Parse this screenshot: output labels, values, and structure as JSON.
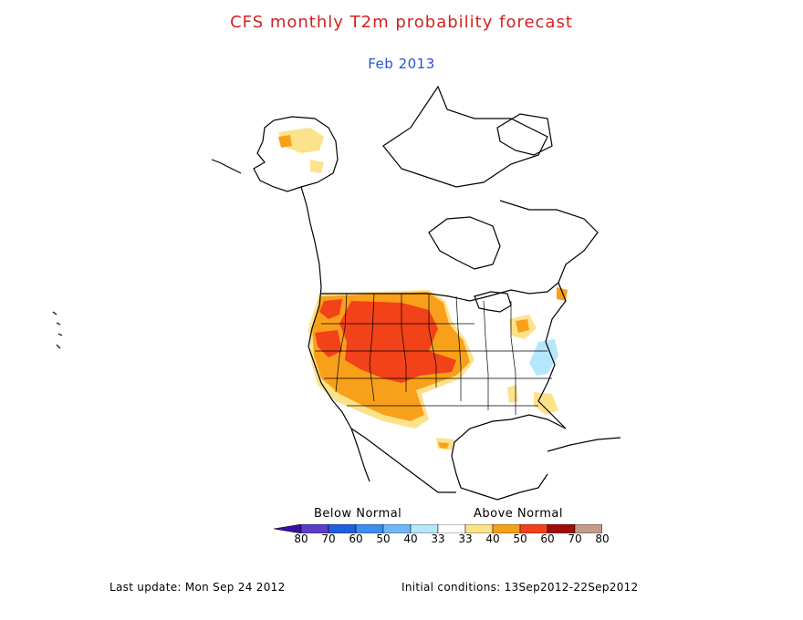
{
  "header": {
    "title": "CFS monthly T2m probability forecast",
    "subtitle": "Feb 2013"
  },
  "legend": {
    "below_label": "Below Normal",
    "above_label": "Above Normal",
    "tick_labels": [
      "80",
      "70",
      "60",
      "50",
      "40",
      "33",
      "33",
      "40",
      "50",
      "60",
      "70",
      "80"
    ],
    "colors": {
      "below": [
        "#3a0fa0",
        "#5b3ec8",
        "#1f5fe0",
        "#3c8ef0",
        "#70b8f5",
        "#b6e6fb",
        "#ffffff"
      ],
      "above": [
        "#ffffff",
        "#fde28c",
        "#f9a01a",
        "#f2421a",
        "#a00a0a",
        "#c39a8e",
        "#7a3a26"
      ]
    }
  },
  "footer": {
    "last_update": "Last update: Mon Sep 24 2012",
    "initial_conditions": "Initial conditions: 13Sep2012-22Sep2012"
  }
}
